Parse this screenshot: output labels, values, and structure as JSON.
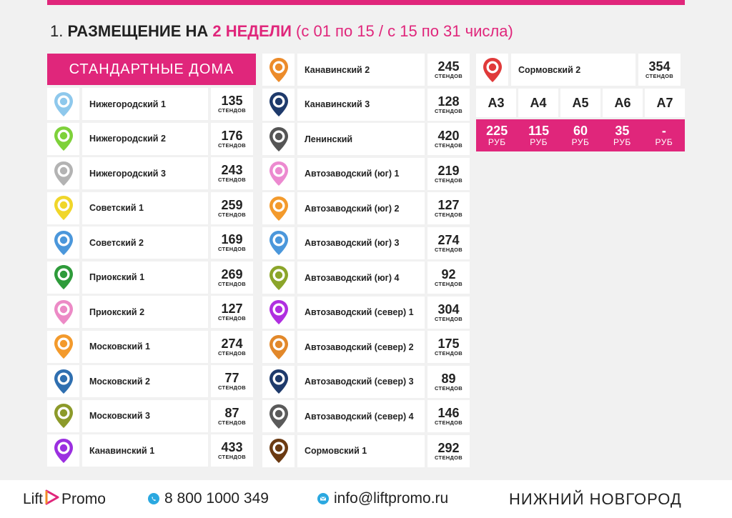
{
  "heading": {
    "num": "1.",
    "label": "РАЗМЕЩЕНИЕ НА",
    "accent": "2 НЕДЕЛИ",
    "cond": "(с 01 по 15 / с 15 по 31 числа)"
  },
  "header_label": "СТАНДАРТНЫЕ ДОМА",
  "unit": "СТЕНДОВ",
  "col1": [
    {
      "name": "Нижегородский 1",
      "count": "135",
      "color": "#8ec8ec"
    },
    {
      "name": "Нижегородский 2",
      "count": "176",
      "color": "#7ed13a"
    },
    {
      "name": "Нижегородский 3",
      "count": "243",
      "color": "#b3b3b3"
    },
    {
      "name": "Советский 1",
      "count": "259",
      "color": "#f0d62a"
    },
    {
      "name": "Советский 2",
      "count": "169",
      "color": "#4b97db"
    },
    {
      "name": "Приокский 1",
      "count": "269",
      "color": "#2e9b3a"
    },
    {
      "name": "Приокский 2",
      "count": "127",
      "color": "#ec8ac6"
    },
    {
      "name": "Московский 1",
      "count": "274",
      "color": "#f39a2c"
    },
    {
      "name": "Московский 2",
      "count": "77",
      "color": "#2f6fb0"
    },
    {
      "name": "Московский 3",
      "count": "87",
      "color": "#8c9a2a"
    },
    {
      "name": "Канавинский 1",
      "count": "433",
      "color": "#9b2fe0"
    }
  ],
  "col2": [
    {
      "name": "Канавинский 2",
      "count": "245",
      "color": "#ec8b2a"
    },
    {
      "name": "Канавинский 3",
      "count": "128",
      "color": "#1e3a6b"
    },
    {
      "name": "Ленинский",
      "count": "420",
      "color": "#555555"
    },
    {
      "name": "Автозаводский (юг) 1",
      "count": "219",
      "color": "#ec8ad0"
    },
    {
      "name": "Автозаводский (юг) 2",
      "count": "127",
      "color": "#f39a2c"
    },
    {
      "name": "Автозаводский (юг) 3",
      "count": "274",
      "color": "#4b97db"
    },
    {
      "name": "Автозаводский (юг) 4",
      "count": "92",
      "color": "#8ba52a"
    },
    {
      "name": "Автозаводский (север) 1",
      "count": "304",
      "color": "#b02fe0"
    },
    {
      "name": "Автозаводский (север) 2",
      "count": "175",
      "color": "#e2882a"
    },
    {
      "name": "Автозаводский (север) 3",
      "count": "89",
      "color": "#1e3a6b"
    },
    {
      "name": "Автозаводский (север) 4",
      "count": "146",
      "color": "#5a5a5a"
    },
    {
      "name": "Сормовский 1",
      "count": "292",
      "color": "#6b3a12"
    }
  ],
  "col3": [
    {
      "name": "Сормовский 2",
      "count": "354",
      "color": "#e03a3a"
    }
  ],
  "sizes": [
    "А3",
    "А4",
    "А5",
    "А6",
    "А7"
  ],
  "prices": [
    "225",
    "115",
    "60",
    "35",
    "-"
  ],
  "price_unit": "РУБ",
  "footer": {
    "logo_left": "Lift",
    "logo_right": "Promo",
    "phone": "8 800 1000 349",
    "email": "info@liftpromo.ru",
    "city": "НИЖНИЙ НОВГОРОД"
  },
  "colors": {
    "accent": "#e0267b"
  }
}
